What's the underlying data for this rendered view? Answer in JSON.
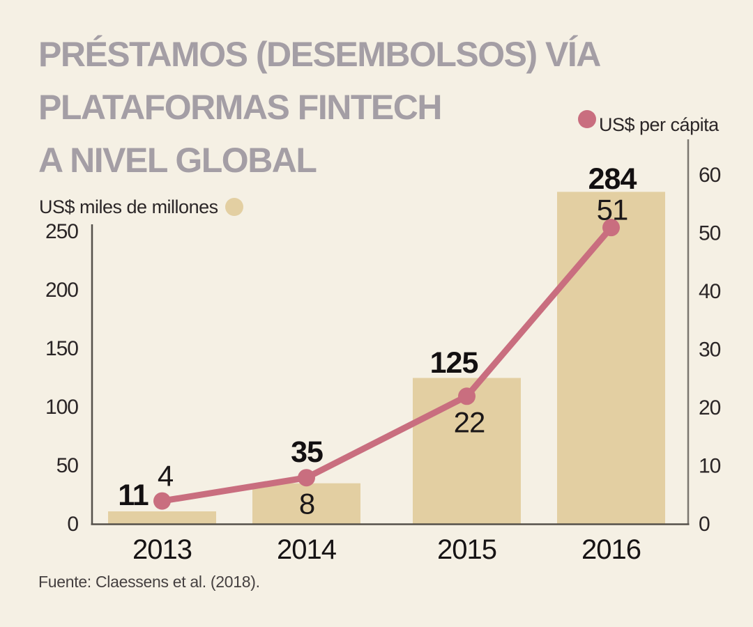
{
  "title_lines": [
    "PRÉSTAMOS (DESEMBOLSOS) VÍA",
    "PLATAFORMAS FINTECH",
    "A NIVEL GLOBAL"
  ],
  "legend_left": "US$ miles de millones",
  "legend_right": "US$ per cápita",
  "source": "Fuente: Claessens et al. (2018).",
  "colors": {
    "background": "#F5F0E4",
    "bar": "#E3CFA2",
    "line": "#C96E7F",
    "title": "#A49EA5",
    "axis_dark": "#55504A",
    "axis_gray": "#7C7770",
    "text": "#231F20"
  },
  "chart_data": {
    "type": "bar+line",
    "title": "PRÉSTAMOS (DESEMBOLSOS) VÍA PLATAFORMAS FINTECH A NIVEL GLOBAL",
    "categories": [
      "2013",
      "2014",
      "2015",
      "2016"
    ],
    "series": [
      {
        "name": "US$ miles de millones",
        "type": "bar",
        "axis": "left",
        "color": "#E3CFA2",
        "values": [
          11,
          35,
          125,
          284
        ]
      },
      {
        "name": "US$ per cápita",
        "type": "line",
        "axis": "right",
        "color": "#C96E7F",
        "values": [
          4,
          8,
          22,
          51
        ]
      }
    ],
    "left_axis": {
      "label": "US$ miles de millones",
      "ticks": [
        0,
        50,
        100,
        150,
        200,
        250
      ],
      "range": [
        0,
        250
      ]
    },
    "right_axis": {
      "label": "US$ per cápita",
      "ticks": [
        0,
        10,
        20,
        30,
        40,
        50,
        60
      ],
      "range": [
        0,
        60
      ]
    },
    "grid": false,
    "legend_position": "top",
    "source": "Fuente: Claessens et al. (2018)."
  }
}
